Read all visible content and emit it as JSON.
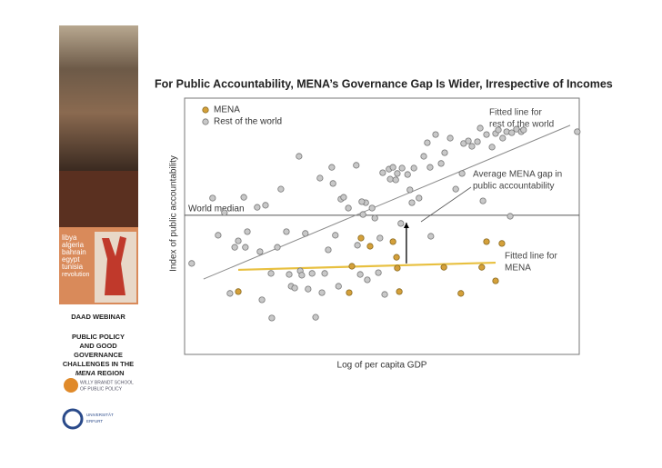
{
  "sidebar": {
    "countries": [
      "libya",
      "algeria",
      "bahrain",
      "egypt",
      "tunisia"
    ],
    "revolution": "revolution",
    "webinar": "DAAD WEBINAR",
    "lines": [
      "PUBLIC POLICY",
      "AND GOOD",
      "GOVERNANCE",
      "CHALLENGES IN THE"
    ],
    "region_em": "MENA",
    "region": "REGION",
    "school": [
      "WILLY BRANDT SCHOOL",
      "OF PUBLIC POLICY"
    ],
    "university": [
      "UNIVERSITÄT",
      "ERFURT"
    ]
  },
  "chart_data": {
    "type": "scatter",
    "title": "For Public Accountability, MENA’s Governance Gap Is Wider, Irrespective of Incomes",
    "x_label": "Log of per capita GDP",
    "y_label": "Index of public accountability",
    "xlim": [
      0,
      100
    ],
    "ylim": [
      0,
      100
    ],
    "series": [
      {
        "name": "MENA",
        "color": "#d4a03a",
        "x": [
          13.6,
          41.7,
          42.4,
          44.7,
          47.0,
          52.8,
          53.7,
          53.9,
          54.4,
          65.7,
          70.0,
          75.3,
          76.5,
          78.8,
          80.4
        ],
        "values": [
          24.5,
          24.1,
          34.4,
          45.4,
          42.2,
          44.0,
          37.9,
          33.7,
          24.5,
          34.0,
          23.8,
          34.0,
          44.0,
          28.7,
          43.3
        ]
      },
      {
        "name": "Rest of the world",
        "color": "#c8c8c8",
        "x": [
          1.8,
          7.1,
          8.5,
          10.1,
          11.5,
          12.7,
          13.6,
          15.0,
          15.4,
          15.9,
          18.4,
          19.6,
          19.1,
          22.1,
          21.9,
          23.5,
          24.4,
          25.8,
          26.5,
          27.0,
          27.9,
          29.0,
          29.3,
          29.7,
          30.6,
          31.3,
          32.3,
          33.2,
          34.3,
          34.8,
          35.5,
          36.4,
          37.3,
          37.6,
          38.2,
          39.0,
          39.6,
          40.3,
          41.5,
          43.5,
          43.8,
          44.5,
          45.2,
          45.9,
          46.3,
          47.5,
          48.2,
          49.1,
          49.5,
          50.2,
          50.7,
          51.8,
          52.1,
          52.8,
          53.5,
          53.9,
          54.8,
          55.1,
          56.5,
          57.1,
          57.6,
          58.1,
          59.4,
          60.6,
          61.5,
          62.2,
          62.4,
          63.6,
          65.0,
          65.9,
          67.3,
          68.7,
          70.3,
          70.7,
          71.9,
          72.8,
          74.2,
          74.9,
          75.6,
          76.5,
          77.9,
          78.8,
          79.5,
          80.6,
          81.6,
          82.5,
          82.9,
          84.1,
          85.3,
          85.9,
          99.5,
          20.5,
          44.9
        ],
        "values": [
          35.5,
          61.0,
          46.5,
          55.3,
          23.8,
          41.8,
          44.3,
          61.3,
          41.8,
          47.9,
          57.4,
          21.3,
          40.1,
          14.2,
          31.6,
          41.8,
          64.5,
          47.9,
          31.2,
          26.6,
          25.9,
          77.3,
          32.6,
          30.9,
          47.2,
          25.5,
          31.6,
          14.5,
          68.8,
          24.1,
          31.6,
          40.8,
          73.0,
          66.7,
          46.5,
          26.6,
          60.6,
          61.3,
          57.1,
          73.8,
          42.6,
          31.2,
          54.6,
          59.2,
          29.1,
          57.1,
          53.2,
          31.9,
          45.4,
          70.9,
          23.4,
          72.3,
          68.4,
          73.0,
          68.1,
          70.6,
          51.1,
          72.7,
          70.2,
          64.2,
          59.2,
          72.7,
          61.0,
          77.3,
          82.6,
          73.0,
          46.1,
          85.8,
          74.5,
          78.7,
          84.4,
          64.5,
          70.6,
          82.3,
          83.3,
          81.2,
          83.0,
          88.3,
          59.9,
          85.8,
          80.9,
          86.2,
          87.6,
          84.4,
          86.9,
          53.9,
          86.5,
          87.9,
          86.9,
          87.6,
          86.9,
          58.2,
          59.6
        ]
      }
    ],
    "fit_lines": [
      {
        "color": "#8a8a8a",
        "x": [
          4.8,
          97.7
        ],
        "values": [
          29.4,
          89.4
        ]
      },
      {
        "color": "#e8c040",
        "x": [
          13.6,
          78.8
        ],
        "values": [
          33.0,
          35.8
        ]
      }
    ],
    "median": {
      "label": "World median",
      "value": 54.3
    },
    "gap": {
      "x": 56.2,
      "values": [
        35.5,
        51.4
      ]
    },
    "annotations": [
      [
        "Fitted line for",
        "rest of the world"
      ],
      [
        "Average MENA gap in",
        "public accountability"
      ],
      [
        "Fitted line for",
        "MENA"
      ]
    ]
  }
}
